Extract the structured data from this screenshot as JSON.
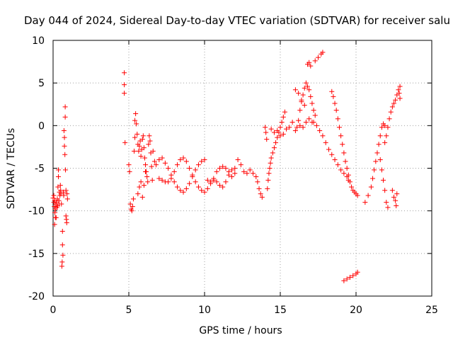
{
  "chart_data": {
    "type": "scatter",
    "title": "Day 044 of 2024, Sidereal Day-to-day VTEC variation (SDTVAR) for receiver salu",
    "xlabel": "GPS time / hours",
    "ylabel": "SDTVAR / TECUs",
    "xlim": [
      0,
      25
    ],
    "ylim": [
      -20,
      10
    ],
    "xticks": [
      0,
      5,
      10,
      15,
      20,
      25
    ],
    "yticks": [
      -20,
      -15,
      -10,
      -5,
      0,
      5,
      10
    ],
    "xtick_labels": [
      "0",
      "5",
      "10",
      "15",
      "20",
      "25"
    ],
    "ytick_labels": [
      "-20",
      "-15",
      "-10",
      "-5",
      "0",
      "5",
      "10"
    ],
    "grid": true,
    "marker": "+",
    "marker_color": "#ff0000",
    "series": [
      {
        "name": "SDTVAR",
        "points": [
          [
            0.0,
            -8.5
          ],
          [
            0.05,
            -9.0
          ],
          [
            0.08,
            -9.5
          ],
          [
            0.1,
            -8.8
          ],
          [
            0.12,
            -10.2
          ],
          [
            0.15,
            -9.8
          ],
          [
            0.18,
            -9.2
          ],
          [
            0.2,
            -10.8
          ],
          [
            0.22,
            -9.0
          ],
          [
            0.25,
            -9.6
          ],
          [
            0.28,
            -8.6
          ],
          [
            0.3,
            -9.4
          ],
          [
            0.32,
            -7.2
          ],
          [
            0.35,
            -6.0
          ],
          [
            0.35,
            -5.2
          ],
          [
            0.38,
            -8.8
          ],
          [
            0.4,
            -9.2
          ],
          [
            0.42,
            -7.8
          ],
          [
            0.45,
            -8.2
          ],
          [
            0.48,
            -7.0
          ],
          [
            0.5,
            -7.6
          ],
          [
            0.52,
            -8.0
          ],
          [
            0.55,
            -9.2
          ],
          [
            0.58,
            -16.5
          ],
          [
            0.6,
            -16.0
          ],
          [
            0.62,
            -14.0
          ],
          [
            0.62,
            -12.4
          ],
          [
            0.65,
            -15.2
          ],
          [
            0.68,
            -7.8
          ],
          [
            0.7,
            -8.2
          ],
          [
            0.72,
            -0.6
          ],
          [
            0.75,
            -1.4
          ],
          [
            0.75,
            -2.4
          ],
          [
            0.78,
            -3.4
          ],
          [
            0.8,
            1.0
          ],
          [
            0.8,
            2.2
          ],
          [
            0.82,
            -5.2
          ],
          [
            0.85,
            -7.6
          ],
          [
            0.85,
            -10.6
          ],
          [
            0.88,
            -11.0
          ],
          [
            0.9,
            -11.4
          ],
          [
            0.92,
            -8.0
          ],
          [
            0.95,
            -8.6
          ],
          [
            0.1,
            -11.6
          ],
          [
            0.15,
            -10.8
          ],
          [
            0.05,
            -8.2
          ],
          [
            4.7,
            6.2
          ],
          [
            4.7,
            4.8
          ],
          [
            4.7,
            3.8
          ],
          [
            4.75,
            -2.0
          ],
          [
            5.0,
            -4.6
          ],
          [
            5.05,
            -5.4
          ],
          [
            5.1,
            -9.2
          ],
          [
            5.15,
            -9.8
          ],
          [
            5.2,
            -10.0
          ],
          [
            5.25,
            -9.5
          ],
          [
            5.3,
            -8.6
          ],
          [
            5.35,
            -3.0
          ],
          [
            5.4,
            -1.4
          ],
          [
            5.4,
            0.6
          ],
          [
            5.45,
            1.4
          ],
          [
            5.5,
            0.2
          ],
          [
            5.55,
            -1.0
          ],
          [
            5.6,
            -2.2
          ],
          [
            5.65,
            -3.0
          ],
          [
            5.7,
            -2.4
          ],
          [
            5.75,
            -1.8
          ],
          [
            5.8,
            -3.6
          ],
          [
            5.85,
            -2.8
          ],
          [
            5.9,
            -1.6
          ],
          [
            5.95,
            -1.2
          ],
          [
            6.0,
            -2.6
          ],
          [
            6.05,
            -3.8
          ],
          [
            6.1,
            -4.6
          ],
          [
            6.15,
            -5.4
          ],
          [
            6.2,
            -6.0
          ],
          [
            6.25,
            -6.6
          ],
          [
            6.3,
            -2.2
          ],
          [
            6.35,
            -1.2
          ],
          [
            6.4,
            -1.8
          ],
          [
            6.45,
            -3.2
          ],
          [
            6.5,
            -4.8
          ],
          [
            6.55,
            -6.4
          ],
          [
            6.6,
            -3.0
          ],
          [
            6.7,
            -4.2
          ],
          [
            5.6,
            -8.0
          ],
          [
            5.7,
            -7.2
          ],
          [
            5.8,
            -6.6
          ],
          [
            5.9,
            -8.4
          ],
          [
            6.0,
            -7.0
          ],
          [
            6.1,
            -5.4
          ],
          [
            6.8,
            -4.6
          ],
          [
            7.0,
            -4.0
          ],
          [
            7.2,
            -3.8
          ],
          [
            7.4,
            -4.4
          ],
          [
            7.6,
            -5.0
          ],
          [
            7.8,
            -5.8
          ],
          [
            8.0,
            -6.6
          ],
          [
            8.2,
            -7.2
          ],
          [
            8.4,
            -7.6
          ],
          [
            8.6,
            -7.8
          ],
          [
            8.8,
            -7.4
          ],
          [
            9.0,
            -6.8
          ],
          [
            9.2,
            -6.0
          ],
          [
            9.4,
            -5.2
          ],
          [
            9.6,
            -4.6
          ],
          [
            9.8,
            -4.2
          ],
          [
            10.0,
            -4.0
          ],
          [
            7.0,
            -6.2
          ],
          [
            7.2,
            -6.4
          ],
          [
            7.4,
            -6.6
          ],
          [
            7.6,
            -6.6
          ],
          [
            7.8,
            -6.2
          ],
          [
            8.0,
            -5.4
          ],
          [
            8.2,
            -4.6
          ],
          [
            8.4,
            -4.0
          ],
          [
            8.6,
            -3.8
          ],
          [
            8.8,
            -4.2
          ],
          [
            9.0,
            -5.0
          ],
          [
            9.2,
            -5.8
          ],
          [
            9.4,
            -6.6
          ],
          [
            9.6,
            -7.2
          ],
          [
            9.8,
            -7.6
          ],
          [
            10.0,
            -7.8
          ],
          [
            10.2,
            -7.4
          ],
          [
            10.4,
            -6.8
          ],
          [
            10.6,
            -6.4
          ],
          [
            10.8,
            -6.6
          ],
          [
            11.0,
            -7.0
          ],
          [
            11.2,
            -7.2
          ],
          [
            11.4,
            -6.6
          ],
          [
            11.6,
            -5.8
          ],
          [
            11.8,
            -5.2
          ],
          [
            12.0,
            -5.0
          ],
          [
            10.2,
            -6.4
          ],
          [
            10.4,
            -6.6
          ],
          [
            10.6,
            -6.2
          ],
          [
            10.8,
            -5.4
          ],
          [
            11.0,
            -5.0
          ],
          [
            11.2,
            -4.8
          ],
          [
            11.4,
            -5.0
          ],
          [
            11.6,
            -5.4
          ],
          [
            11.8,
            -6.0
          ],
          [
            12.0,
            -5.6
          ],
          [
            12.2,
            -4.0
          ],
          [
            12.4,
            -4.6
          ],
          [
            12.6,
            -5.4
          ],
          [
            12.8,
            -5.6
          ],
          [
            13.0,
            -5.2
          ],
          [
            13.2,
            -5.6
          ],
          [
            13.4,
            -6.0
          ],
          [
            13.5,
            -6.6
          ],
          [
            13.6,
            -7.4
          ],
          [
            13.7,
            -8.0
          ],
          [
            13.8,
            -8.4
          ],
          [
            14.0,
            -0.2
          ],
          [
            14.05,
            -0.8
          ],
          [
            14.1,
            -1.6
          ],
          [
            14.15,
            -7.4
          ],
          [
            14.2,
            -6.4
          ],
          [
            14.25,
            -5.6
          ],
          [
            14.3,
            -5.0
          ],
          [
            14.35,
            -4.4
          ],
          [
            14.4,
            -3.8
          ],
          [
            14.5,
            -3.2
          ],
          [
            14.6,
            -2.6
          ],
          [
            14.7,
            -2.0
          ],
          [
            14.8,
            -1.4
          ],
          [
            14.9,
            -0.8
          ],
          [
            15.0,
            -0.2
          ],
          [
            15.1,
            0.4
          ],
          [
            15.2,
            1.0
          ],
          [
            15.3,
            1.6
          ],
          [
            14.4,
            -0.4
          ],
          [
            14.6,
            -0.8
          ],
          [
            14.8,
            -0.6
          ],
          [
            15.0,
            -1.2
          ],
          [
            15.2,
            -1.0
          ],
          [
            15.4,
            -0.4
          ],
          [
            15.6,
            -0.2
          ],
          [
            15.8,
            0.4
          ],
          [
            16.0,
            -0.6
          ],
          [
            16.1,
            -0.2
          ],
          [
            16.2,
            0.6
          ],
          [
            16.3,
            1.8
          ],
          [
            16.4,
            2.8
          ],
          [
            16.5,
            3.6
          ],
          [
            16.6,
            4.4
          ],
          [
            16.7,
            5.0
          ],
          [
            16.8,
            4.6
          ],
          [
            16.9,
            4.2
          ],
          [
            17.0,
            3.4
          ],
          [
            17.1,
            2.6
          ],
          [
            17.2,
            1.8
          ],
          [
            17.3,
            1.2
          ],
          [
            16.3,
            0.0
          ],
          [
            16.5,
            -0.2
          ],
          [
            16.7,
            0.4
          ],
          [
            16.9,
            0.8
          ],
          [
            17.1,
            0.4
          ],
          [
            16.0,
            4.2
          ],
          [
            16.2,
            3.8
          ],
          [
            16.4,
            3.0
          ],
          [
            16.6,
            2.4
          ],
          [
            16.8,
            7.2
          ],
          [
            16.9,
            7.4
          ],
          [
            17.0,
            7.0
          ],
          [
            17.3,
            7.6
          ],
          [
            17.5,
            8.0
          ],
          [
            17.7,
            8.4
          ],
          [
            17.8,
            8.6
          ],
          [
            17.2,
            0.4
          ],
          [
            17.4,
            0.0
          ],
          [
            17.6,
            -0.6
          ],
          [
            17.8,
            -1.2
          ],
          [
            18.0,
            -2.0
          ],
          [
            18.2,
            -2.8
          ],
          [
            18.4,
            -3.4
          ],
          [
            18.6,
            -4.0
          ],
          [
            18.8,
            -4.6
          ],
          [
            19.0,
            -5.2
          ],
          [
            19.2,
            -5.6
          ],
          [
            19.4,
            -6.0
          ],
          [
            19.5,
            -6.4
          ],
          [
            18.4,
            4.0
          ],
          [
            18.5,
            3.4
          ],
          [
            18.6,
            2.6
          ],
          [
            18.7,
            1.8
          ],
          [
            18.8,
            0.8
          ],
          [
            18.9,
            -0.2
          ],
          [
            19.0,
            -1.2
          ],
          [
            19.1,
            -2.2
          ],
          [
            19.2,
            -3.2
          ],
          [
            19.3,
            -4.2
          ],
          [
            19.4,
            -5.0
          ],
          [
            19.5,
            -5.8
          ],
          [
            19.6,
            -6.6
          ],
          [
            19.7,
            -7.2
          ],
          [
            19.8,
            -7.6
          ],
          [
            19.9,
            -7.8
          ],
          [
            20.0,
            -8.0
          ],
          [
            20.1,
            -8.2
          ],
          [
            19.2,
            -18.2
          ],
          [
            19.4,
            -18.0
          ],
          [
            19.6,
            -17.8
          ],
          [
            19.8,
            -17.6
          ],
          [
            20.0,
            -17.4
          ],
          [
            20.1,
            -17.2
          ],
          [
            20.6,
            -9.0
          ],
          [
            20.8,
            -8.2
          ],
          [
            21.0,
            -7.2
          ],
          [
            21.1,
            -6.2
          ],
          [
            21.2,
            -5.2
          ],
          [
            21.3,
            -4.2
          ],
          [
            21.4,
            -3.2
          ],
          [
            21.5,
            -2.2
          ],
          [
            21.6,
            -1.2
          ],
          [
            21.7,
            -0.2
          ],
          [
            21.8,
            0.2
          ],
          [
            21.9,
            0.0
          ],
          [
            21.6,
            -4.0
          ],
          [
            21.7,
            -5.2
          ],
          [
            21.8,
            -6.4
          ],
          [
            21.9,
            -7.6
          ],
          [
            22.0,
            -9.0
          ],
          [
            22.1,
            -9.6
          ],
          [
            21.9,
            -2.0
          ],
          [
            22.0,
            -1.2
          ],
          [
            22.1,
            -0.2
          ],
          [
            22.2,
            0.8
          ],
          [
            22.3,
            1.6
          ],
          [
            22.4,
            2.2
          ],
          [
            22.5,
            2.6
          ],
          [
            22.6,
            3.0
          ],
          [
            22.7,
            3.6
          ],
          [
            22.8,
            4.2
          ],
          [
            22.9,
            4.6
          ],
          [
            22.85,
            3.8
          ],
          [
            22.9,
            3.2
          ],
          [
            22.4,
            -7.6
          ],
          [
            22.5,
            -8.4
          ],
          [
            22.6,
            -8.8
          ],
          [
            22.65,
            -9.4
          ],
          [
            22.7,
            -8.0
          ]
        ]
      }
    ]
  }
}
